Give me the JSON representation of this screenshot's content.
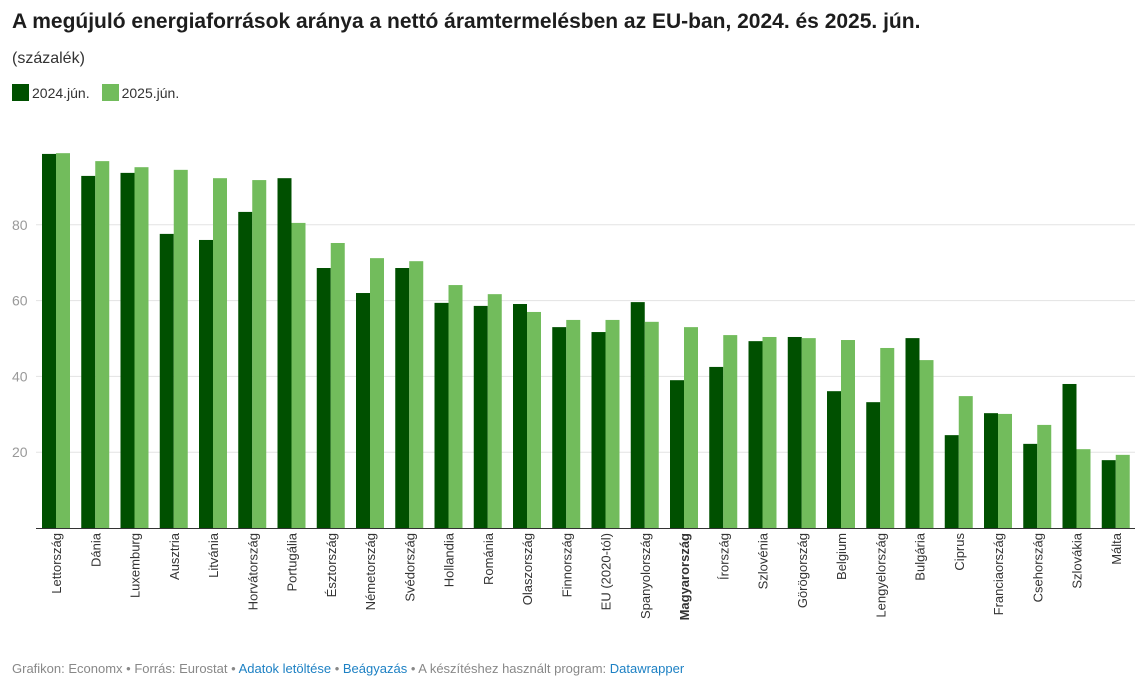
{
  "title": "A megújuló energiaforrások aránya a nettó áramtermelésben az EU-ban, 2024. és 2025. jún.",
  "subtitle": "(százalék)",
  "footer": {
    "credit": "Grafikon: Economx • Forrás: Eurostat • ",
    "download": "Adatok letöltése",
    "sep": " • ",
    "embed": "Beágyazás",
    "program": "  • A készítéshez használt program: ",
    "datawrapper": "Datawrapper"
  },
  "chart_data": {
    "type": "bar",
    "title": "A megújuló energiaforrások aránya a nettó áramtermelésben az EU-ban, 2024. és 2025. jún.",
    "ylabel": "(százalék)",
    "ylim": [
      0,
      100
    ],
    "yticks": [
      20,
      40,
      60,
      80
    ],
    "grid": true,
    "legend": "top-left",
    "highlight": "Magyarország",
    "categories": [
      "Lettország",
      "Dánia",
      "Luxemburg",
      "Ausztria",
      "Litvánia",
      "Horvátország",
      "Portugália",
      "Észtország",
      "Németország",
      "Svédország",
      "Hollandia",
      "Románia",
      "Olaszország",
      "Finnország",
      "EU (2020-tól)",
      "Spanyolország",
      "Magyarország",
      "Írország",
      "Szlovénia",
      "Görögország",
      "Belgium",
      "Lengyelország",
      "Bulgária",
      "Ciprus",
      "Franciaország",
      "Csehország",
      "Szlovákia",
      "Málta"
    ],
    "series": [
      {
        "name": "2024.jún.",
        "color": "#005000",
        "values": [
          98.7,
          92.9,
          93.7,
          77.6,
          76.0,
          83.4,
          92.3,
          68.6,
          62.0,
          68.6,
          59.4,
          58.6,
          59.1,
          53.0,
          51.7,
          59.6,
          39.0,
          42.5,
          49.3,
          50.4,
          36.1,
          33.2,
          50.1,
          24.5,
          30.3,
          22.2,
          38.0,
          17.9
        ]
      },
      {
        "name": "2025.jún.",
        "color": "#72bc5c",
        "values": [
          98.9,
          96.8,
          95.2,
          94.5,
          92.3,
          91.8,
          80.5,
          75.2,
          71.2,
          70.4,
          64.1,
          61.7,
          57.0,
          54.9,
          54.9,
          54.4,
          53.0,
          50.9,
          50.4,
          50.1,
          49.6,
          47.5,
          44.3,
          34.8,
          30.1,
          27.2,
          20.8,
          19.3
        ]
      }
    ]
  }
}
